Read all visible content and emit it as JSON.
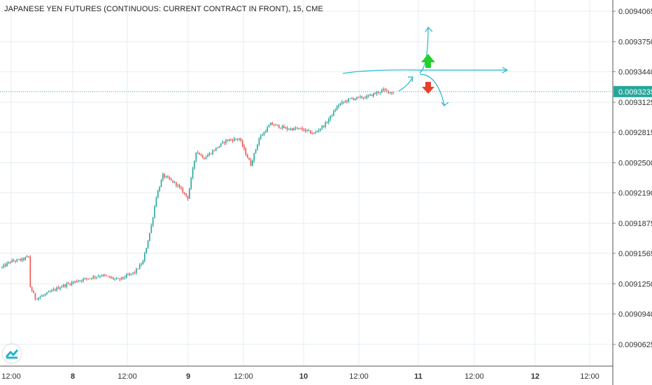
{
  "header": {
    "title": "JAPANESE YEN FUTURES (CONTINUOUS: CURRENT CONTRACT IN FRONT), 15, CME"
  },
  "logo": {
    "icon": "tradingview-logo-icon"
  },
  "colors": {
    "up": "#26a69a",
    "down": "#ef5350",
    "grid": "#e6eef2",
    "axis_text": "#333333",
    "price_line": "#26a69a",
    "drawing": "#1fb7c9",
    "arrow_up": "#22d12a",
    "arrow_down": "#e8402f"
  },
  "chart_data": {
    "type": "candlestick",
    "title": "JAPANESE YEN FUTURES (CONTINUOUS: CURRENT CONTRACT IN FRONT), 15, CME",
    "interval": "15",
    "exchange": "CME",
    "y_axis": {
      "side": "right",
      "range": [
        0.009045,
        0.009425
      ],
      "tick_labels": [
        "0.0094065",
        "0.0093750",
        "0.0093440",
        "0.0093125",
        "0.0092815",
        "0.0092500",
        "0.0092190",
        "0.0091875",
        "0.0091565",
        "0.0091250",
        "0.0090940",
        "0.0090625"
      ]
    },
    "x_axis": {
      "tick_labels": [
        "12:00",
        "8",
        "12:00",
        "9",
        "12:00",
        "10",
        "12:00",
        "11",
        "12:00",
        "12",
        "12:00"
      ],
      "bold_labels": [
        "8",
        "9",
        "10",
        "11",
        "12"
      ]
    },
    "last_price": "0.0093235",
    "grid": true,
    "key_points": [
      {
        "t": 0,
        "v": 0.009142
      },
      {
        "t": 5,
        "v": 0.009148
      },
      {
        "t": 12,
        "v": 0.00915
      },
      {
        "t": 16,
        "v": 0.009153
      },
      {
        "t": 17,
        "v": 0.009122
      },
      {
        "t": 20,
        "v": 0.00911
      },
      {
        "t": 25,
        "v": 0.009113
      },
      {
        "t": 35,
        "v": 0.009122
      },
      {
        "t": 45,
        "v": 0.009128
      },
      {
        "t": 60,
        "v": 0.009134
      },
      {
        "t": 70,
        "v": 0.009129
      },
      {
        "t": 80,
        "v": 0.009137
      },
      {
        "t": 85,
        "v": 0.009148
      },
      {
        "t": 90,
        "v": 0.009185
      },
      {
        "t": 93,
        "v": 0.009215
      },
      {
        "t": 97,
        "v": 0.009237
      },
      {
        "t": 105,
        "v": 0.009228
      },
      {
        "t": 112,
        "v": 0.009214
      },
      {
        "t": 117,
        "v": 0.009262
      },
      {
        "t": 122,
        "v": 0.009255
      },
      {
        "t": 135,
        "v": 0.009273
      },
      {
        "t": 143,
        "v": 0.009275
      },
      {
        "t": 150,
        "v": 0.009248
      },
      {
        "t": 155,
        "v": 0.009275
      },
      {
        "t": 162,
        "v": 0.00929
      },
      {
        "t": 172,
        "v": 0.009285
      },
      {
        "t": 180,
        "v": 0.009285
      },
      {
        "t": 188,
        "v": 0.00928
      },
      {
        "t": 195,
        "v": 0.00929
      },
      {
        "t": 203,
        "v": 0.00931
      },
      {
        "t": 210,
        "v": 0.009316
      },
      {
        "t": 220,
        "v": 0.009318
      },
      {
        "t": 230,
        "v": 0.009325
      },
      {
        "t": 236,
        "v": 0.009322
      }
    ],
    "annotations": {
      "horizontal_line": 0.009345,
      "up_arrow": "up-arrow-icon",
      "down_arrow": "down-arrow-icon"
    }
  }
}
